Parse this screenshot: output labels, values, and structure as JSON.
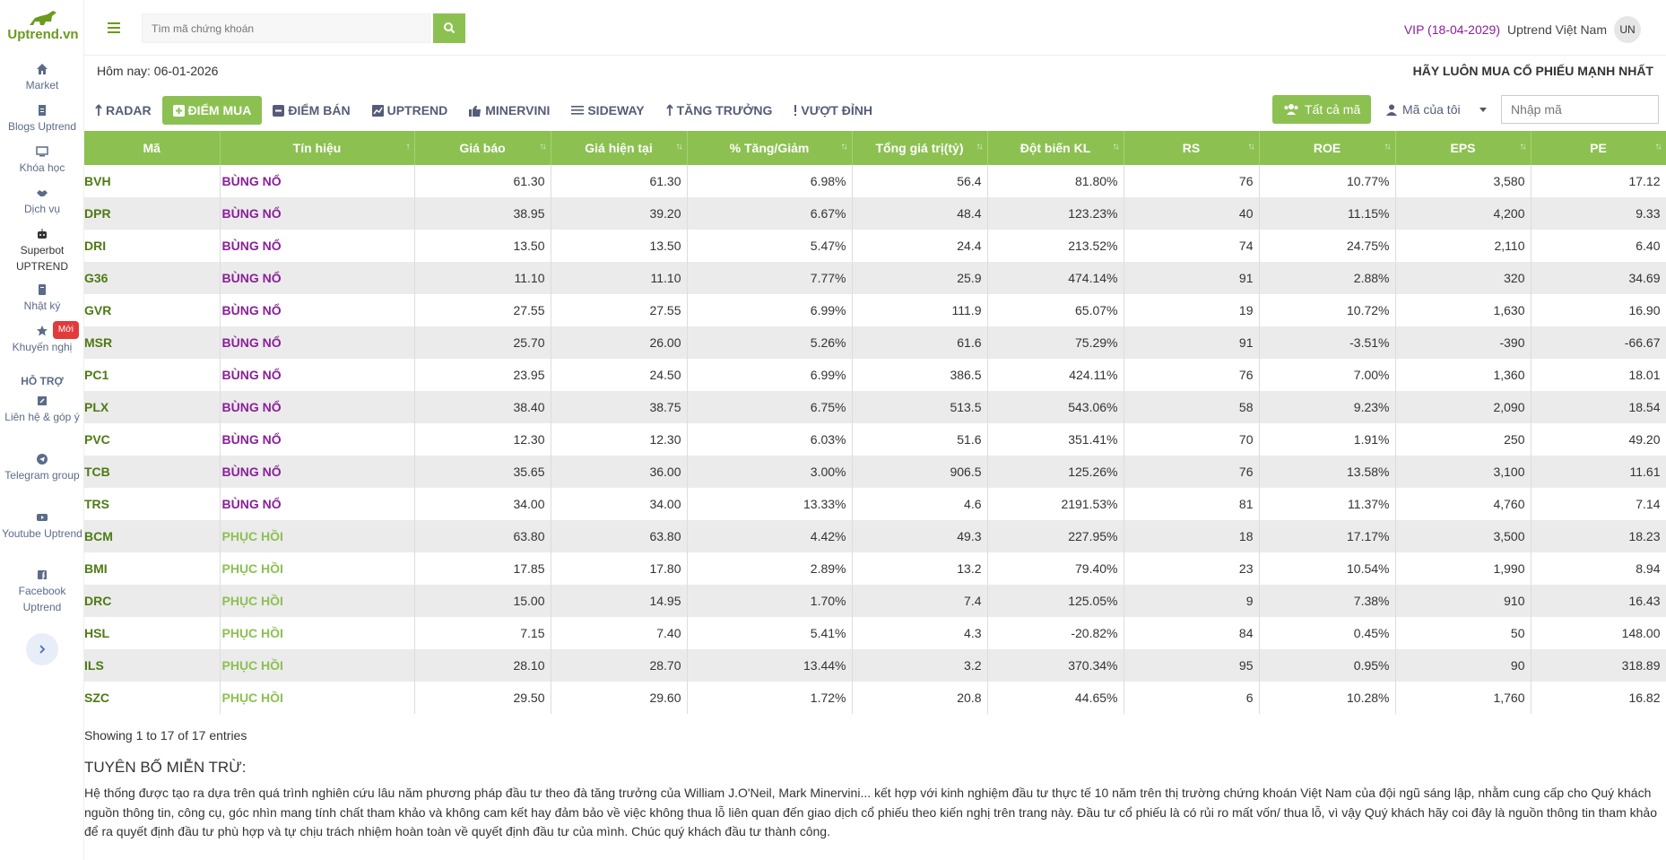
{
  "brand": {
    "name": "Uptrend.vn",
    "color": "#6a9a1f"
  },
  "sidebar": {
    "items": [
      {
        "label": "Market",
        "icon": "home-icon"
      },
      {
        "label": "Blogs Uptrend",
        "icon": "file-icon"
      },
      {
        "label": "Khóa học",
        "icon": "monitor-icon"
      },
      {
        "label": "Dịch vụ",
        "icon": "handshake-icon"
      },
      {
        "label": "Superbot UPTREND",
        "icon": "robot-icon"
      },
      {
        "label": "Nhật ký",
        "icon": "book-icon"
      },
      {
        "label": "Khuyến nghị",
        "icon": "star-icon",
        "badge": "Mới"
      }
    ],
    "section": "HỖ TRỢ",
    "support": [
      {
        "label": "Liên hệ & góp ý",
        "icon": "edit-icon"
      },
      {
        "label": "Telegram group",
        "icon": "telegram-icon"
      },
      {
        "label": "Youtube Uptrend",
        "icon": "youtube-icon"
      },
      {
        "label": "Facebook Uptrend",
        "icon": "facebook-icon"
      }
    ]
  },
  "header": {
    "search_placeholder": "Tìm mã chứng khoán",
    "vip": "VIP (18-04-2029)",
    "user": "Uptrend Việt Nam",
    "avatar": "UN"
  },
  "today": "Hôm nay: 06-01-2026",
  "slogan": "HÃY LUÔN MUA CỔ PHIẾU MẠNH NHẤT",
  "tabs": [
    {
      "label": "RADAR",
      "icon": "arrow-up-icon"
    },
    {
      "label": "ĐIỂM MUA",
      "icon": "plus-square-icon",
      "active": true
    },
    {
      "label": "ĐIỂM BÁN",
      "icon": "minus-square-icon"
    },
    {
      "label": "UPTREND",
      "icon": "chart-icon"
    },
    {
      "label": "MINERVINI",
      "icon": "thumbs-up-icon"
    },
    {
      "label": "SIDEWAY",
      "icon": "lines-icon"
    },
    {
      "label": "TĂNG TRƯỞNG",
      "icon": "arrow-up-icon"
    },
    {
      "label": "VƯỢT ĐỈNH",
      "icon": "exclamation-icon"
    }
  ],
  "filters": {
    "all": "Tất cả mã",
    "mine": "Mã của tôi",
    "code_placeholder": "Nhập mã"
  },
  "table": {
    "headers": [
      "Mã",
      "Tín hiệu",
      "Giá báo",
      "Giá hiện tại",
      "% Tăng/Giảm",
      "Tổng giá trị(tỷ)",
      "Đột biến KL",
      "RS",
      "ROE",
      "EPS",
      "PE"
    ],
    "rows": [
      [
        "BVH",
        "BÙNG NỔ",
        "61.30",
        "61.30",
        "6.98%",
        "56.4",
        "81.80%",
        "76",
        "10.77%",
        "3,580",
        "17.12"
      ],
      [
        "DPR",
        "BÙNG NỔ",
        "38.95",
        "39.20",
        "6.67%",
        "48.4",
        "123.23%",
        "40",
        "11.15%",
        "4,200",
        "9.33"
      ],
      [
        "DRI",
        "BÙNG NỔ",
        "13.50",
        "13.50",
        "5.47%",
        "24.4",
        "213.52%",
        "74",
        "24.75%",
        "2,110",
        "6.40"
      ],
      [
        "G36",
        "BÙNG NỔ",
        "11.10",
        "11.10",
        "7.77%",
        "25.9",
        "474.14%",
        "91",
        "2.88%",
        "320",
        "34.69"
      ],
      [
        "GVR",
        "BÙNG NỔ",
        "27.55",
        "27.55",
        "6.99%",
        "111.9",
        "65.07%",
        "19",
        "10.72%",
        "1,630",
        "16.90"
      ],
      [
        "MSR",
        "BÙNG NỔ",
        "25.70",
        "26.00",
        "5.26%",
        "61.6",
        "75.29%",
        "91",
        "-3.51%",
        "-390",
        "-66.67"
      ],
      [
        "PC1",
        "BÙNG NỔ",
        "23.95",
        "24.50",
        "6.99%",
        "386.5",
        "424.11%",
        "76",
        "7.00%",
        "1,360",
        "18.01"
      ],
      [
        "PLX",
        "BÙNG NỔ",
        "38.40",
        "38.75",
        "6.75%",
        "513.5",
        "543.06%",
        "58",
        "9.23%",
        "2,090",
        "18.54"
      ],
      [
        "PVC",
        "BÙNG NỔ",
        "12.30",
        "12.30",
        "6.03%",
        "51.6",
        "351.41%",
        "70",
        "1.91%",
        "250",
        "49.20"
      ],
      [
        "TCB",
        "BÙNG NỔ",
        "35.65",
        "36.00",
        "3.00%",
        "906.5",
        "125.26%",
        "76",
        "13.58%",
        "3,100",
        "11.61"
      ],
      [
        "TRS",
        "BÙNG NỔ",
        "34.00",
        "34.00",
        "13.33%",
        "4.6",
        "2191.53%",
        "81",
        "11.37%",
        "4,760",
        "7.14"
      ],
      [
        "BCM",
        "PHỤC HỒI",
        "63.80",
        "63.80",
        "4.42%",
        "49.3",
        "227.95%",
        "18",
        "17.17%",
        "3,500",
        "18.23"
      ],
      [
        "BMI",
        "PHỤC HỒI",
        "17.85",
        "17.80",
        "2.89%",
        "13.2",
        "79.40%",
        "23",
        "10.54%",
        "1,990",
        "8.94"
      ],
      [
        "DRC",
        "PHỤC HỒI",
        "15.00",
        "14.95",
        "1.70%",
        "7.4",
        "125.05%",
        "9",
        "7.38%",
        "910",
        "16.43"
      ],
      [
        "HSL",
        "PHỤC HỒI",
        "7.15",
        "7.40",
        "5.41%",
        "4.3",
        "-20.82%",
        "84",
        "0.45%",
        "50",
        "148.00"
      ],
      [
        "ILS",
        "PHỤC HỒI",
        "28.10",
        "28.70",
        "13.44%",
        "3.2",
        "370.34%",
        "95",
        "0.95%",
        "90",
        "318.89"
      ],
      [
        "SZC",
        "PHỤC HỒI",
        "29.50",
        "29.60",
        "1.72%",
        "20.8",
        "44.65%",
        "6",
        "10.28%",
        "1,760",
        "16.82"
      ]
    ],
    "highlights": {
      "rs": [
        "G36",
        "MSR",
        "TRS",
        "HSL",
        "ILS"
      ],
      "roe": [
        "DRI",
        "BCM"
      ],
      "eps": [
        "BVH",
        "DPR",
        "TCB",
        "TRS",
        "BCM"
      ]
    }
  },
  "showing": "Showing 1 to 17 of 17 entries",
  "disclaimer": {
    "title": "TUYÊN BỐ MIỄN TRỪ:",
    "text": "Hệ thống được tạo ra dựa trên quá trình nghiên cứu lâu năm phương pháp đầu tư theo đà tăng trưởng của William J.O'Neil, Mark Minervini... kết hợp với kinh nghiệm đầu tư thực tế 10 năm trên thị trường chứng khoán Việt Nam của đội ngũ sáng lập, nhằm cung cấp cho Quý khách nguồn thông tin, công cụ, góc nhìn mang tính chất tham khảo và không cam kết hay đảm bảo về việc không thua lỗ liên quan đến giao dịch cổ phiếu theo kiến nghị trên trang này. Đầu tư cổ phiếu là có rủi ro mất vốn/ thua lỗ, vì vậy Quý khách hãy coi đây là nguồn thông tin tham khảo để ra quyết định đầu tư phù hợp và tự chịu trách nhiệm hoàn toàn về quyết định đầu tư của mình. Chúc quý khách đầu tư thành công."
  },
  "colors": {
    "accent": "#8cc152",
    "purple": "#8a1f9a",
    "code_green": "#4e7a13"
  }
}
